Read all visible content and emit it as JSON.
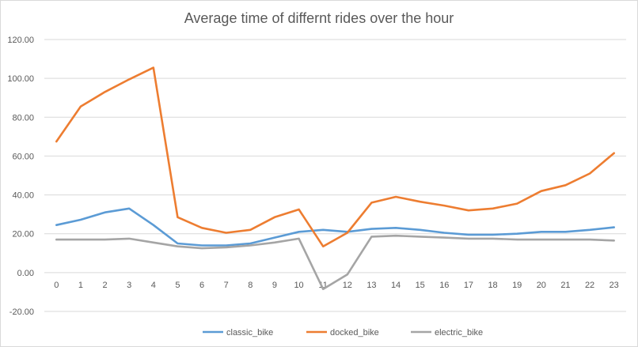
{
  "chart_data": {
    "type": "line",
    "title": "Average time of differnt rides over the hour",
    "xlabel": "",
    "ylabel": "",
    "categories": [
      "0",
      "1",
      "2",
      "3",
      "4",
      "5",
      "6",
      "7",
      "8",
      "9",
      "10",
      "11",
      "12",
      "13",
      "14",
      "15",
      "16",
      "17",
      "18",
      "19",
      "20",
      "21",
      "22",
      "23"
    ],
    "ylim": [
      -20,
      120
    ],
    "yticks": [
      -20,
      0,
      20,
      40,
      60,
      80,
      100,
      120
    ],
    "ytick_labels": [
      "-20.00",
      "0.00",
      "20.00",
      "40.00",
      "60.00",
      "80.00",
      "100.00",
      "120.00"
    ],
    "grid": true,
    "legend_position": "bottom",
    "series": [
      {
        "name": "classic_bike",
        "color": "#5b9bd5",
        "values": [
          24.5,
          27.2,
          31.0,
          33.0,
          24.5,
          15.0,
          14.0,
          14.0,
          15.0,
          18.0,
          21.0,
          22.0,
          21.0,
          22.5,
          23.0,
          22.0,
          20.5,
          19.5,
          19.5,
          20.0,
          21.0,
          21.0,
          22.0,
          23.3
        ]
      },
      {
        "name": "docked_bike",
        "color": "#ed7d31",
        "values": [
          67.5,
          85.5,
          93.0,
          99.5,
          105.5,
          28.5,
          23.0,
          20.5,
          22.0,
          28.5,
          32.5,
          13.5,
          20.5,
          36.0,
          39.0,
          36.5,
          34.5,
          32.0,
          33.0,
          35.5,
          42.0,
          45.0,
          51.0,
          61.5
        ]
      },
      {
        "name": "electric_bike",
        "color": "#a5a5a5",
        "values": [
          17.0,
          17.0,
          17.0,
          17.5,
          15.5,
          13.5,
          12.5,
          13.0,
          14.0,
          15.5,
          17.5,
          -8.5,
          -1.0,
          18.5,
          19.0,
          18.5,
          18.0,
          17.5,
          17.5,
          17.0,
          17.0,
          17.0,
          17.0,
          16.5
        ]
      }
    ]
  }
}
